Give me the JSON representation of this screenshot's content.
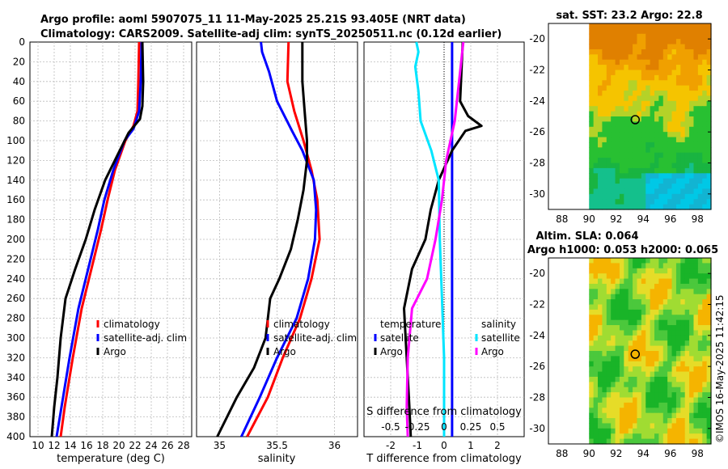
{
  "title": {
    "line1": "Argo profile: aoml 5907075_11 11-May-2025 25.21S 93.405E (NRT data)",
    "line2": "Climatology: CARS2009. Satellite-adj clim: synTS_20250511.nc (0.12d earlier)"
  },
  "depth_ticks": [
    "0",
    "20",
    "40",
    "60",
    "80",
    "100",
    "120",
    "140",
    "160",
    "180",
    "200",
    "220",
    "240",
    "260",
    "280",
    "300",
    "320",
    "340",
    "360",
    "380",
    "400"
  ],
  "colors": {
    "climatology": "#ff0000",
    "satellite": "#0000ff",
    "argo": "#000000",
    "sat_s": "#00e5ff",
    "argo_s": "#ff00ff"
  },
  "chart_data": [
    {
      "type": "line",
      "id": "temperature",
      "xlabel": "temperature (deg C)",
      "ylabel": "",
      "xlim": [
        9,
        29
      ],
      "ylim": [
        400,
        0
      ],
      "xtick_labels": [
        "10",
        "12",
        "14",
        "16",
        "18",
        "20",
        "22",
        "24",
        "26",
        "28"
      ],
      "legend": [
        "climatology",
        "satellite-adj. clim",
        "Argo"
      ],
      "series": [
        {
          "name": "climatology",
          "color": "#ff0000",
          "points": [
            [
              22.5,
              0
            ],
            [
              22.4,
              40
            ],
            [
              22.3,
              70
            ],
            [
              21.8,
              85
            ],
            [
              20.8,
              100
            ],
            [
              19.5,
              130
            ],
            [
              18.6,
              160
            ],
            [
              17.8,
              190
            ],
            [
              16.6,
              230
            ],
            [
              15.4,
              270
            ],
            [
              14.3,
              320
            ],
            [
              13.3,
              370
            ],
            [
              12.8,
              400
            ]
          ]
        },
        {
          "name": "satellite-adj. clim",
          "color": "#0000ff",
          "points": [
            [
              22.8,
              0
            ],
            [
              22.7,
              40
            ],
            [
              22.5,
              70
            ],
            [
              21.8,
              88
            ],
            [
              20.7,
              100
            ],
            [
              19.3,
              130
            ],
            [
              18.2,
              160
            ],
            [
              17.4,
              190
            ],
            [
              16.2,
              230
            ],
            [
              15.0,
              270
            ],
            [
              13.9,
              320
            ],
            [
              12.9,
              370
            ],
            [
              12.3,
              400
            ]
          ]
        },
        {
          "name": "Argo",
          "color": "#000000",
          "points": [
            [
              22.9,
              0
            ],
            [
              23.0,
              40
            ],
            [
              22.9,
              65
            ],
            [
              22.6,
              78
            ],
            [
              21.2,
              92
            ],
            [
              19.8,
              115
            ],
            [
              18.3,
              140
            ],
            [
              17.0,
              170
            ],
            [
              15.9,
              200
            ],
            [
              14.6,
              230
            ],
            [
              13.4,
              260
            ],
            [
              12.8,
              300
            ],
            [
              12.4,
              340
            ],
            [
              12.0,
              370
            ],
            [
              11.7,
              400
            ]
          ]
        }
      ]
    },
    {
      "type": "line",
      "id": "salinity",
      "xlabel": "salinity",
      "ylabel": "",
      "xlim": [
        34.8,
        36.2
      ],
      "ylim": [
        400,
        0
      ],
      "xtick_labels": [
        "35",
        "35.5",
        "36"
      ],
      "legend": [
        "climatology",
        "satellite-adj. clim",
        "Argo"
      ],
      "series": [
        {
          "name": "climatology",
          "color": "#ff0000",
          "points": [
            [
              35.6,
              0
            ],
            [
              35.59,
              40
            ],
            [
              35.65,
              70
            ],
            [
              35.73,
              100
            ],
            [
              35.8,
              130
            ],
            [
              35.85,
              160
            ],
            [
              35.87,
              200
            ],
            [
              35.8,
              240
            ],
            [
              35.7,
              280
            ],
            [
              35.55,
              320
            ],
            [
              35.42,
              360
            ],
            [
              35.24,
              400
            ]
          ]
        },
        {
          "name": "satellite-adj. clim",
          "color": "#0000ff",
          "points": [
            [
              35.36,
              0
            ],
            [
              35.37,
              10
            ],
            [
              35.43,
              30
            ],
            [
              35.5,
              60
            ],
            [
              35.63,
              90
            ],
            [
              35.72,
              110
            ],
            [
              35.82,
              140
            ],
            [
              35.84,
              170
            ],
            [
              35.83,
              200
            ],
            [
              35.77,
              240
            ],
            [
              35.67,
              280
            ],
            [
              35.5,
              320
            ],
            [
              35.35,
              360
            ],
            [
              35.19,
              400
            ]
          ]
        },
        {
          "name": "Argo",
          "color": "#000000",
          "points": [
            [
              35.72,
              0
            ],
            [
              35.72,
              40
            ],
            [
              35.74,
              70
            ],
            [
              35.76,
              100
            ],
            [
              35.76,
              120
            ],
            [
              35.73,
              150
            ],
            [
              35.68,
              180
            ],
            [
              35.62,
              210
            ],
            [
              35.52,
              240
            ],
            [
              35.44,
              260
            ],
            [
              35.4,
              300
            ],
            [
              35.3,
              330
            ],
            [
              35.15,
              360
            ],
            [
              34.98,
              400
            ]
          ]
        }
      ]
    },
    {
      "type": "line",
      "id": "differences",
      "xlabel": "T difference from climatology",
      "xlabel2": "S difference from climatology",
      "xlim": [
        -3,
        3
      ],
      "xlim2": [
        -0.75,
        0.75
      ],
      "ylim": [
        400,
        0
      ],
      "xtick_labels": [
        "-2",
        "-1",
        "0",
        "1",
        "2"
      ],
      "xtick2_labels": [
        "-0.5",
        "-0.25",
        "0",
        "0.25",
        "0.5"
      ],
      "legend_left_header": "temperature",
      "legend_right_header": "salinity",
      "legend_left": [
        "satellite",
        "Argo"
      ],
      "legend_right": [
        "satellite",
        "Argo"
      ],
      "series": [
        {
          "name": "T satellite",
          "color": "#0000ff",
          "points": [
            [
              0.3,
              0
            ],
            [
              0.3,
              400
            ]
          ]
        },
        {
          "name": "T Argo",
          "color": "#000000",
          "points": [
            [
              0.7,
              0
            ],
            [
              0.6,
              60
            ],
            [
              0.9,
              75
            ],
            [
              1.4,
              85
            ],
            [
              0.8,
              90
            ],
            [
              0.3,
              110
            ],
            [
              -0.2,
              140
            ],
            [
              -0.5,
              170
            ],
            [
              -0.7,
              200
            ],
            [
              -1.2,
              230
            ],
            [
              -1.5,
              270
            ],
            [
              -1.4,
              320
            ],
            [
              -1.3,
              370
            ],
            [
              -1.25,
              400
            ]
          ]
        },
        {
          "name": "S satellite",
          "color": "#00e5ff",
          "points": [
            [
              -0.26,
              0
            ],
            [
              -0.24,
              10
            ],
            [
              -0.27,
              25
            ],
            [
              -0.24,
              50
            ],
            [
              -0.22,
              80
            ],
            [
              -0.12,
              110
            ],
            [
              -0.05,
              140
            ],
            [
              -0.04,
              200
            ],
            [
              -0.02,
              260
            ],
            [
              0.0,
              320
            ],
            [
              0.0,
              400
            ]
          ]
        },
        {
          "name": "S Argo",
          "color": "#ff00ff",
          "points": [
            [
              0.18,
              0
            ],
            [
              0.14,
              40
            ],
            [
              0.1,
              80
            ],
            [
              0.02,
              120
            ],
            [
              -0.02,
              160
            ],
            [
              -0.08,
              200
            ],
            [
              -0.16,
              240
            ],
            [
              -0.3,
              270
            ],
            [
              -0.34,
              320
            ],
            [
              -0.35,
              370
            ],
            [
              -0.34,
              400
            ]
          ]
        }
      ]
    },
    {
      "type": "heatmap",
      "id": "sst_map",
      "title": "sat. SST: 23.2 Argo: 22.8",
      "xlim": [
        87,
        99
      ],
      "ylim": [
        -31,
        -19
      ],
      "data_xlim": [
        90,
        99
      ],
      "xtick_labels": [
        "88",
        "90",
        "92",
        "94",
        "96",
        "98"
      ],
      "ytick_labels": [
        "-20",
        "-22",
        "-24",
        "-26",
        "-28",
        "-30"
      ],
      "marker": {
        "lon": 93.405,
        "lat": -25.21
      }
    },
    {
      "type": "heatmap",
      "id": "sla_map",
      "title": "Altim. SLA: 0.064",
      "title2": "Argo h1000: 0.053 h2000: 0.065",
      "xlim": [
        87,
        99
      ],
      "ylim": [
        -31,
        -19
      ],
      "data_xlim": [
        90,
        99
      ],
      "xtick_labels": [
        "88",
        "90",
        "92",
        "94",
        "96",
        "98"
      ],
      "ytick_labels": [
        "-20",
        "-22",
        "-24",
        "-26",
        "-28",
        "-30"
      ],
      "marker": {
        "lon": 93.405,
        "lat": -25.21
      }
    }
  ],
  "credit": "©IMOS 16-May-2025 11:42:15"
}
